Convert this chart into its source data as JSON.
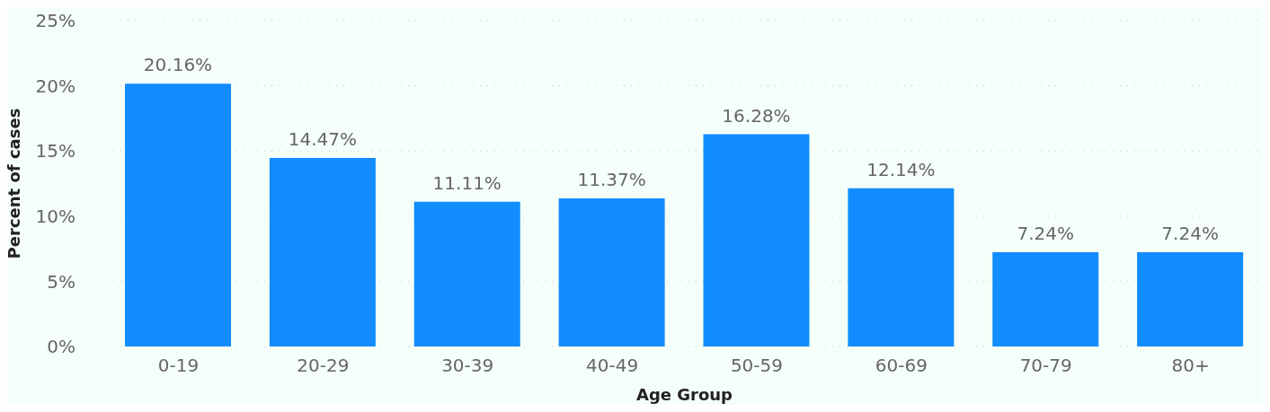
{
  "chart_data": {
    "type": "bar",
    "xlabel": "Age Group",
    "ylabel": "Percent of cases",
    "categories": [
      "0-19",
      "20-29",
      "30-39",
      "40-49",
      "50-59",
      "60-69",
      "70-79",
      "80+"
    ],
    "values": [
      20.16,
      14.47,
      11.11,
      11.37,
      16.28,
      12.14,
      7.24,
      7.24
    ],
    "value_labels": [
      "20.16%",
      "14.47%",
      "11.11%",
      "11.37%",
      "16.28%",
      "12.14%",
      "7.24%",
      "7.24%"
    ],
    "color": "#118dff",
    "ylim": [
      0,
      25
    ],
    "yticks": [
      {
        "value": 0,
        "label": "0%"
      },
      {
        "value": 5,
        "label": "5%"
      },
      {
        "value": 10,
        "label": "10%"
      },
      {
        "value": 15,
        "label": "15%"
      },
      {
        "value": 20,
        "label": "20%"
      },
      {
        "value": 25,
        "label": "25%"
      }
    ],
    "grid": "y",
    "line_style": "dotted"
  }
}
